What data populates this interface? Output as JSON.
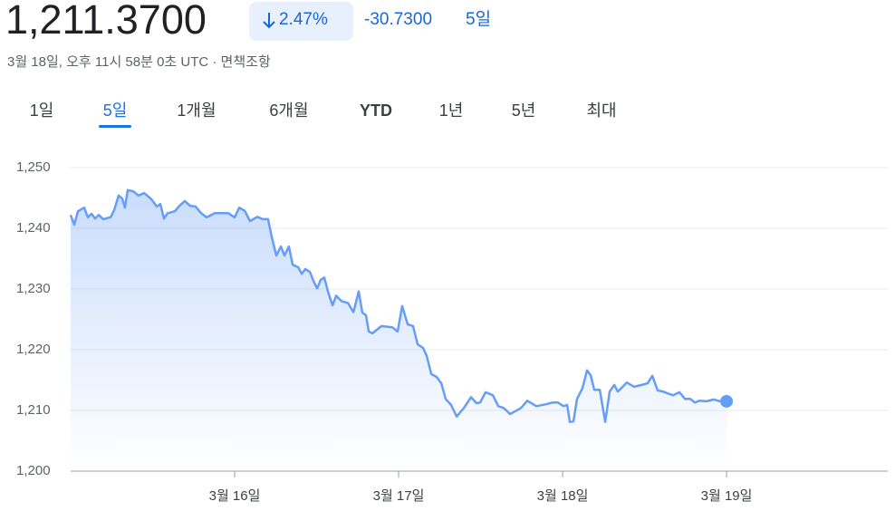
{
  "header": {
    "price": "1,211.3700",
    "change_percent": "2.47%",
    "change": "-30.7300",
    "period": "5일",
    "timestamp": "3월 18일, 오후 11시 58분 0초 UTC · 면책조항"
  },
  "tabs": {
    "items": [
      "1일",
      "5일",
      "1개월",
      "6개월",
      "YTD",
      "1년",
      "5년",
      "최대"
    ],
    "active": 1
  },
  "chart_data": {
    "type": "line",
    "color": "#669df6",
    "grid": true,
    "xlim": [
      15,
      19.983
    ],
    "ylim": [
      1200,
      1250
    ],
    "xticks": [
      {
        "value": 16,
        "label": "3월 16일"
      },
      {
        "value": 17,
        "label": "3월 17일"
      },
      {
        "value": 18,
        "label": "3월 18일"
      },
      {
        "value": 19,
        "label": "3월 19일"
      }
    ],
    "yticks": [
      {
        "value": 1200,
        "label": "1,200"
      },
      {
        "value": 1210,
        "label": "1,210"
      },
      {
        "value": 1220,
        "label": "1,220"
      },
      {
        "value": 1230,
        "label": "1,230"
      },
      {
        "value": 1240,
        "label": "1,240"
      },
      {
        "value": 1250,
        "label": "1,250"
      }
    ],
    "x": [
      15.0,
      15.022,
      15.044,
      15.083,
      15.105,
      15.127,
      15.149,
      15.171,
      15.199,
      15.243,
      15.265,
      15.293,
      15.315,
      15.331,
      15.348,
      15.381,
      15.414,
      15.448,
      15.492,
      15.525,
      15.547,
      15.569,
      15.591,
      15.635,
      15.663,
      15.696,
      15.729,
      15.762,
      15.796,
      15.829,
      15.851,
      15.878,
      15.961,
      16.0,
      16.028,
      16.061,
      16.094,
      16.138,
      16.171,
      16.204,
      16.227,
      16.254,
      16.282,
      16.304,
      16.331,
      16.354,
      16.387,
      16.409,
      16.431,
      16.459,
      16.481,
      16.503,
      16.525,
      16.547,
      16.569,
      16.597,
      16.619,
      16.652,
      16.691,
      16.724,
      16.757,
      16.779,
      16.801,
      16.818,
      16.84,
      16.895,
      16.961,
      16.994,
      17.022,
      17.055,
      17.088,
      17.116,
      17.149,
      17.171,
      17.199,
      17.232,
      17.26,
      17.287,
      17.32,
      17.354,
      17.398,
      17.442,
      17.475,
      17.497,
      17.53,
      17.575,
      17.608,
      17.641,
      17.68,
      17.713,
      17.746,
      17.785,
      17.84,
      17.895,
      17.939,
      17.972,
      18.006,
      18.028,
      18.044,
      18.066,
      18.088,
      18.122,
      18.149,
      18.171,
      18.193,
      18.227,
      18.26,
      18.287,
      18.315,
      18.337,
      18.392,
      18.436,
      18.481,
      18.519,
      18.547,
      18.58,
      18.613,
      18.641,
      18.674,
      18.713,
      18.746,
      18.779,
      18.807,
      18.834,
      18.878,
      18.923,
      18.961,
      19.0
    ],
    "values": [
      1242.2,
      1240.6,
      1242.8,
      1243.4,
      1241.8,
      1242.4,
      1241.6,
      1242.2,
      1241.5,
      1241.8,
      1243.0,
      1245.4,
      1244.9,
      1243.4,
      1246.3,
      1246.1,
      1245.4,
      1245.8,
      1244.8,
      1243.6,
      1244.0,
      1241.6,
      1242.5,
      1242.8,
      1243.7,
      1244.5,
      1243.7,
      1243.6,
      1242.5,
      1241.8,
      1242.1,
      1242.5,
      1242.5,
      1241.8,
      1243.4,
      1242.9,
      1241.2,
      1241.9,
      1241.5,
      1241.5,
      1238.5,
      1235.5,
      1237.0,
      1235.5,
      1237.0,
      1234.0,
      1233.6,
      1232.5,
      1233.3,
      1232.8,
      1231.3,
      1230.1,
      1231.5,
      1231.9,
      1229.6,
      1227.3,
      1228.9,
      1228.0,
      1227.7,
      1226.2,
      1229.6,
      1226.1,
      1225.7,
      1223.0,
      1222.7,
      1223.9,
      1223.7,
      1223.0,
      1227.2,
      1224.2,
      1223.9,
      1220.9,
      1220.3,
      1219.0,
      1216.0,
      1215.5,
      1214.5,
      1211.9,
      1210.9,
      1209.0,
      1210.4,
      1212.2,
      1211.2,
      1211.3,
      1213.0,
      1212.5,
      1210.7,
      1210.4,
      1209.4,
      1209.9,
      1210.4,
      1211.6,
      1210.7,
      1211.0,
      1211.3,
      1211.3,
      1210.7,
      1210.9,
      1208.1,
      1208.2,
      1211.9,
      1213.7,
      1216.6,
      1215.8,
      1213.4,
      1213.4,
      1208.1,
      1213.1,
      1214.2,
      1213.1,
      1214.6,
      1213.9,
      1214.2,
      1214.5,
      1215.7,
      1213.3,
      1213.1,
      1212.8,
      1212.5,
      1213.0,
      1211.9,
      1211.9,
      1211.3,
      1211.6,
      1211.5,
      1211.8,
      1211.5,
      1211.5
    ]
  }
}
